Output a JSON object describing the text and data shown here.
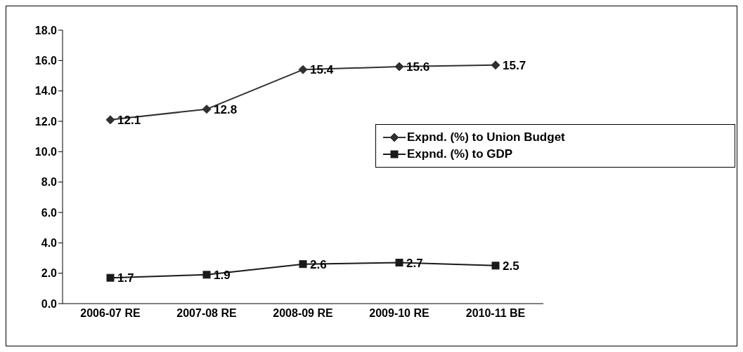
{
  "chart_data": {
    "type": "line",
    "categories": [
      "2006-07 RE",
      "2007-08 RE",
      "2008-09 RE",
      "2009-10 RE",
      "2010-11 BE"
    ],
    "series": [
      {
        "name": "Expnd. (%) to Union Budget",
        "color": "#303030",
        "marker": "diamond",
        "values": [
          12.1,
          12.8,
          15.4,
          15.6,
          15.7
        ]
      },
      {
        "name": "Expnd. (%) to GDP",
        "color": "#1a1a1a",
        "marker": "square",
        "values": [
          1.7,
          1.9,
          2.6,
          2.7,
          2.5
        ]
      }
    ],
    "ylim": [
      0,
      18
    ],
    "yticks": [
      {
        "value": 0,
        "label": "0.0"
      },
      {
        "value": 2,
        "label": "2.0"
      },
      {
        "value": 4,
        "label": "4.0"
      },
      {
        "value": 6,
        "label": "6.0"
      },
      {
        "value": 8,
        "label": "8.0"
      },
      {
        "value": 10,
        "label": "10.0"
      },
      {
        "value": 12,
        "label": "12.0"
      },
      {
        "value": 14,
        "label": "14.0"
      },
      {
        "value": 16,
        "label": "16.0"
      },
      {
        "value": 18,
        "label": "18.0"
      }
    ],
    "grid": false,
    "legend": "right",
    "data_labels": true
  }
}
